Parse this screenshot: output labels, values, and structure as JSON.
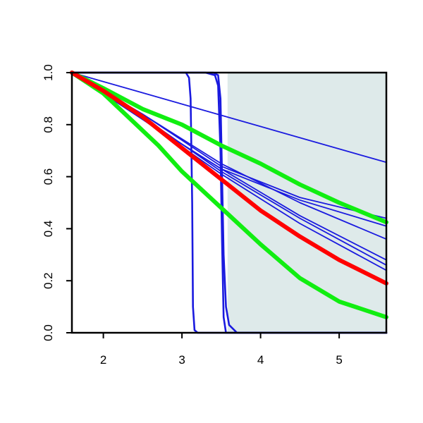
{
  "chart_data": {
    "type": "line",
    "title": "",
    "xlabel": "",
    "ylabel": "",
    "xlim": [
      1.6,
      5.6
    ],
    "ylim": [
      0,
      1
    ],
    "x_ticks": [
      2,
      3,
      4,
      5
    ],
    "y_ticks": [
      0.0,
      0.2,
      0.4,
      0.6,
      0.8,
      1.0
    ],
    "x_tick_labels": [
      "2",
      "3",
      "4",
      "5"
    ],
    "y_tick_labels": [
      "0.0",
      "0.2",
      "0.4",
      "0.6",
      "0.8",
      "1.0"
    ],
    "grid": false,
    "legend": "none",
    "shaded_region": {
      "x_start": 3.58,
      "x_end": 5.6,
      "color": "#deeaea"
    },
    "colors": {
      "blue": "#1a1adf",
      "red": "#ff0000",
      "green": "#11ee11"
    },
    "series": [
      {
        "color": "blue",
        "width": "thin",
        "points": [
          [
            1.6,
            1.0
          ],
          [
            5.6,
            0.655
          ]
        ]
      },
      {
        "color": "blue",
        "width": "thin",
        "points": [
          [
            1.6,
            1.0
          ],
          [
            2.5,
            0.84
          ],
          [
            3.5,
            0.64
          ],
          [
            4.5,
            0.52
          ],
          [
            5.6,
            0.44
          ]
        ]
      },
      {
        "color": "blue",
        "width": "thin",
        "points": [
          [
            1.6,
            1.0
          ],
          [
            2.5,
            0.82
          ],
          [
            3.5,
            0.63
          ],
          [
            4.5,
            0.51
          ],
          [
            5.6,
            0.41
          ]
        ]
      },
      {
        "color": "blue",
        "width": "thin",
        "points": [
          [
            1.6,
            1.0
          ],
          [
            2.5,
            0.82
          ],
          [
            3.5,
            0.63
          ],
          [
            4.5,
            0.45
          ],
          [
            5.6,
            0.28
          ]
        ]
      },
      {
        "color": "blue",
        "width": "thin",
        "points": [
          [
            1.6,
            1.0
          ],
          [
            2.5,
            0.83
          ],
          [
            3.5,
            0.62
          ],
          [
            4.5,
            0.44
          ],
          [
            5.6,
            0.26
          ]
        ]
      },
      {
        "color": "blue",
        "width": "thin",
        "points": [
          [
            1.6,
            1.0
          ],
          [
            2.5,
            0.82
          ],
          [
            3.5,
            0.61
          ],
          [
            4.5,
            0.42
          ],
          [
            5.6,
            0.24
          ]
        ]
      },
      {
        "color": "blue",
        "width": "thin",
        "points": [
          [
            1.6,
            1.0
          ],
          [
            2.5,
            0.84
          ],
          [
            3.5,
            0.65
          ],
          [
            4.5,
            0.5
          ],
          [
            5.6,
            0.36
          ]
        ]
      },
      {
        "color": "blue",
        "width": "medium",
        "points": [
          [
            1.6,
            1.0
          ],
          [
            3.05,
            1.0
          ],
          [
            3.09,
            0.98
          ],
          [
            3.11,
            0.9
          ],
          [
            3.13,
            0.5
          ],
          [
            3.14,
            0.1
          ],
          [
            3.16,
            0.01
          ],
          [
            3.2,
            0.0
          ],
          [
            5.6,
            0.0
          ]
        ]
      },
      {
        "color": "blue",
        "width": "medium",
        "points": [
          [
            1.6,
            1.0
          ],
          [
            3.3,
            1.0
          ],
          [
            3.42,
            0.99
          ],
          [
            3.46,
            0.95
          ],
          [
            3.49,
            0.7
          ],
          [
            3.51,
            0.35
          ],
          [
            3.53,
            0.06
          ],
          [
            3.56,
            0.0
          ],
          [
            5.6,
            0.0
          ]
        ]
      },
      {
        "color": "blue",
        "width": "medium",
        "points": [
          [
            1.6,
            1.0
          ],
          [
            3.4,
            1.0
          ],
          [
            3.46,
            0.99
          ],
          [
            3.49,
            0.9
          ],
          [
            3.51,
            0.6
          ],
          [
            3.53,
            0.3
          ],
          [
            3.56,
            0.1
          ],
          [
            3.6,
            0.03
          ],
          [
            3.7,
            0.0
          ],
          [
            5.6,
            0.0
          ]
        ]
      },
      {
        "color": "green",
        "width": "thick",
        "points": [
          [
            1.6,
            1.0
          ],
          [
            2.0,
            0.94
          ],
          [
            2.5,
            0.86
          ],
          [
            3.0,
            0.8
          ],
          [
            3.5,
            0.72
          ],
          [
            4.0,
            0.65
          ],
          [
            4.5,
            0.57
          ],
          [
            5.0,
            0.5
          ],
          [
            5.6,
            0.425
          ]
        ]
      },
      {
        "color": "green",
        "width": "thick",
        "points": [
          [
            1.6,
            1.0
          ],
          [
            2.0,
            0.92
          ],
          [
            2.7,
            0.72
          ],
          [
            3.0,
            0.62
          ],
          [
            3.5,
            0.48
          ],
          [
            4.0,
            0.34
          ],
          [
            4.5,
            0.21
          ],
          [
            5.0,
            0.12
          ],
          [
            5.6,
            0.06
          ]
        ]
      },
      {
        "color": "red",
        "width": "thick",
        "points": [
          [
            1.6,
            1.0
          ],
          [
            2.0,
            0.93
          ],
          [
            2.5,
            0.83
          ],
          [
            3.0,
            0.71
          ],
          [
            3.5,
            0.59
          ],
          [
            4.0,
            0.47
          ],
          [
            4.5,
            0.37
          ],
          [
            5.0,
            0.28
          ],
          [
            5.6,
            0.19
          ]
        ]
      }
    ]
  }
}
